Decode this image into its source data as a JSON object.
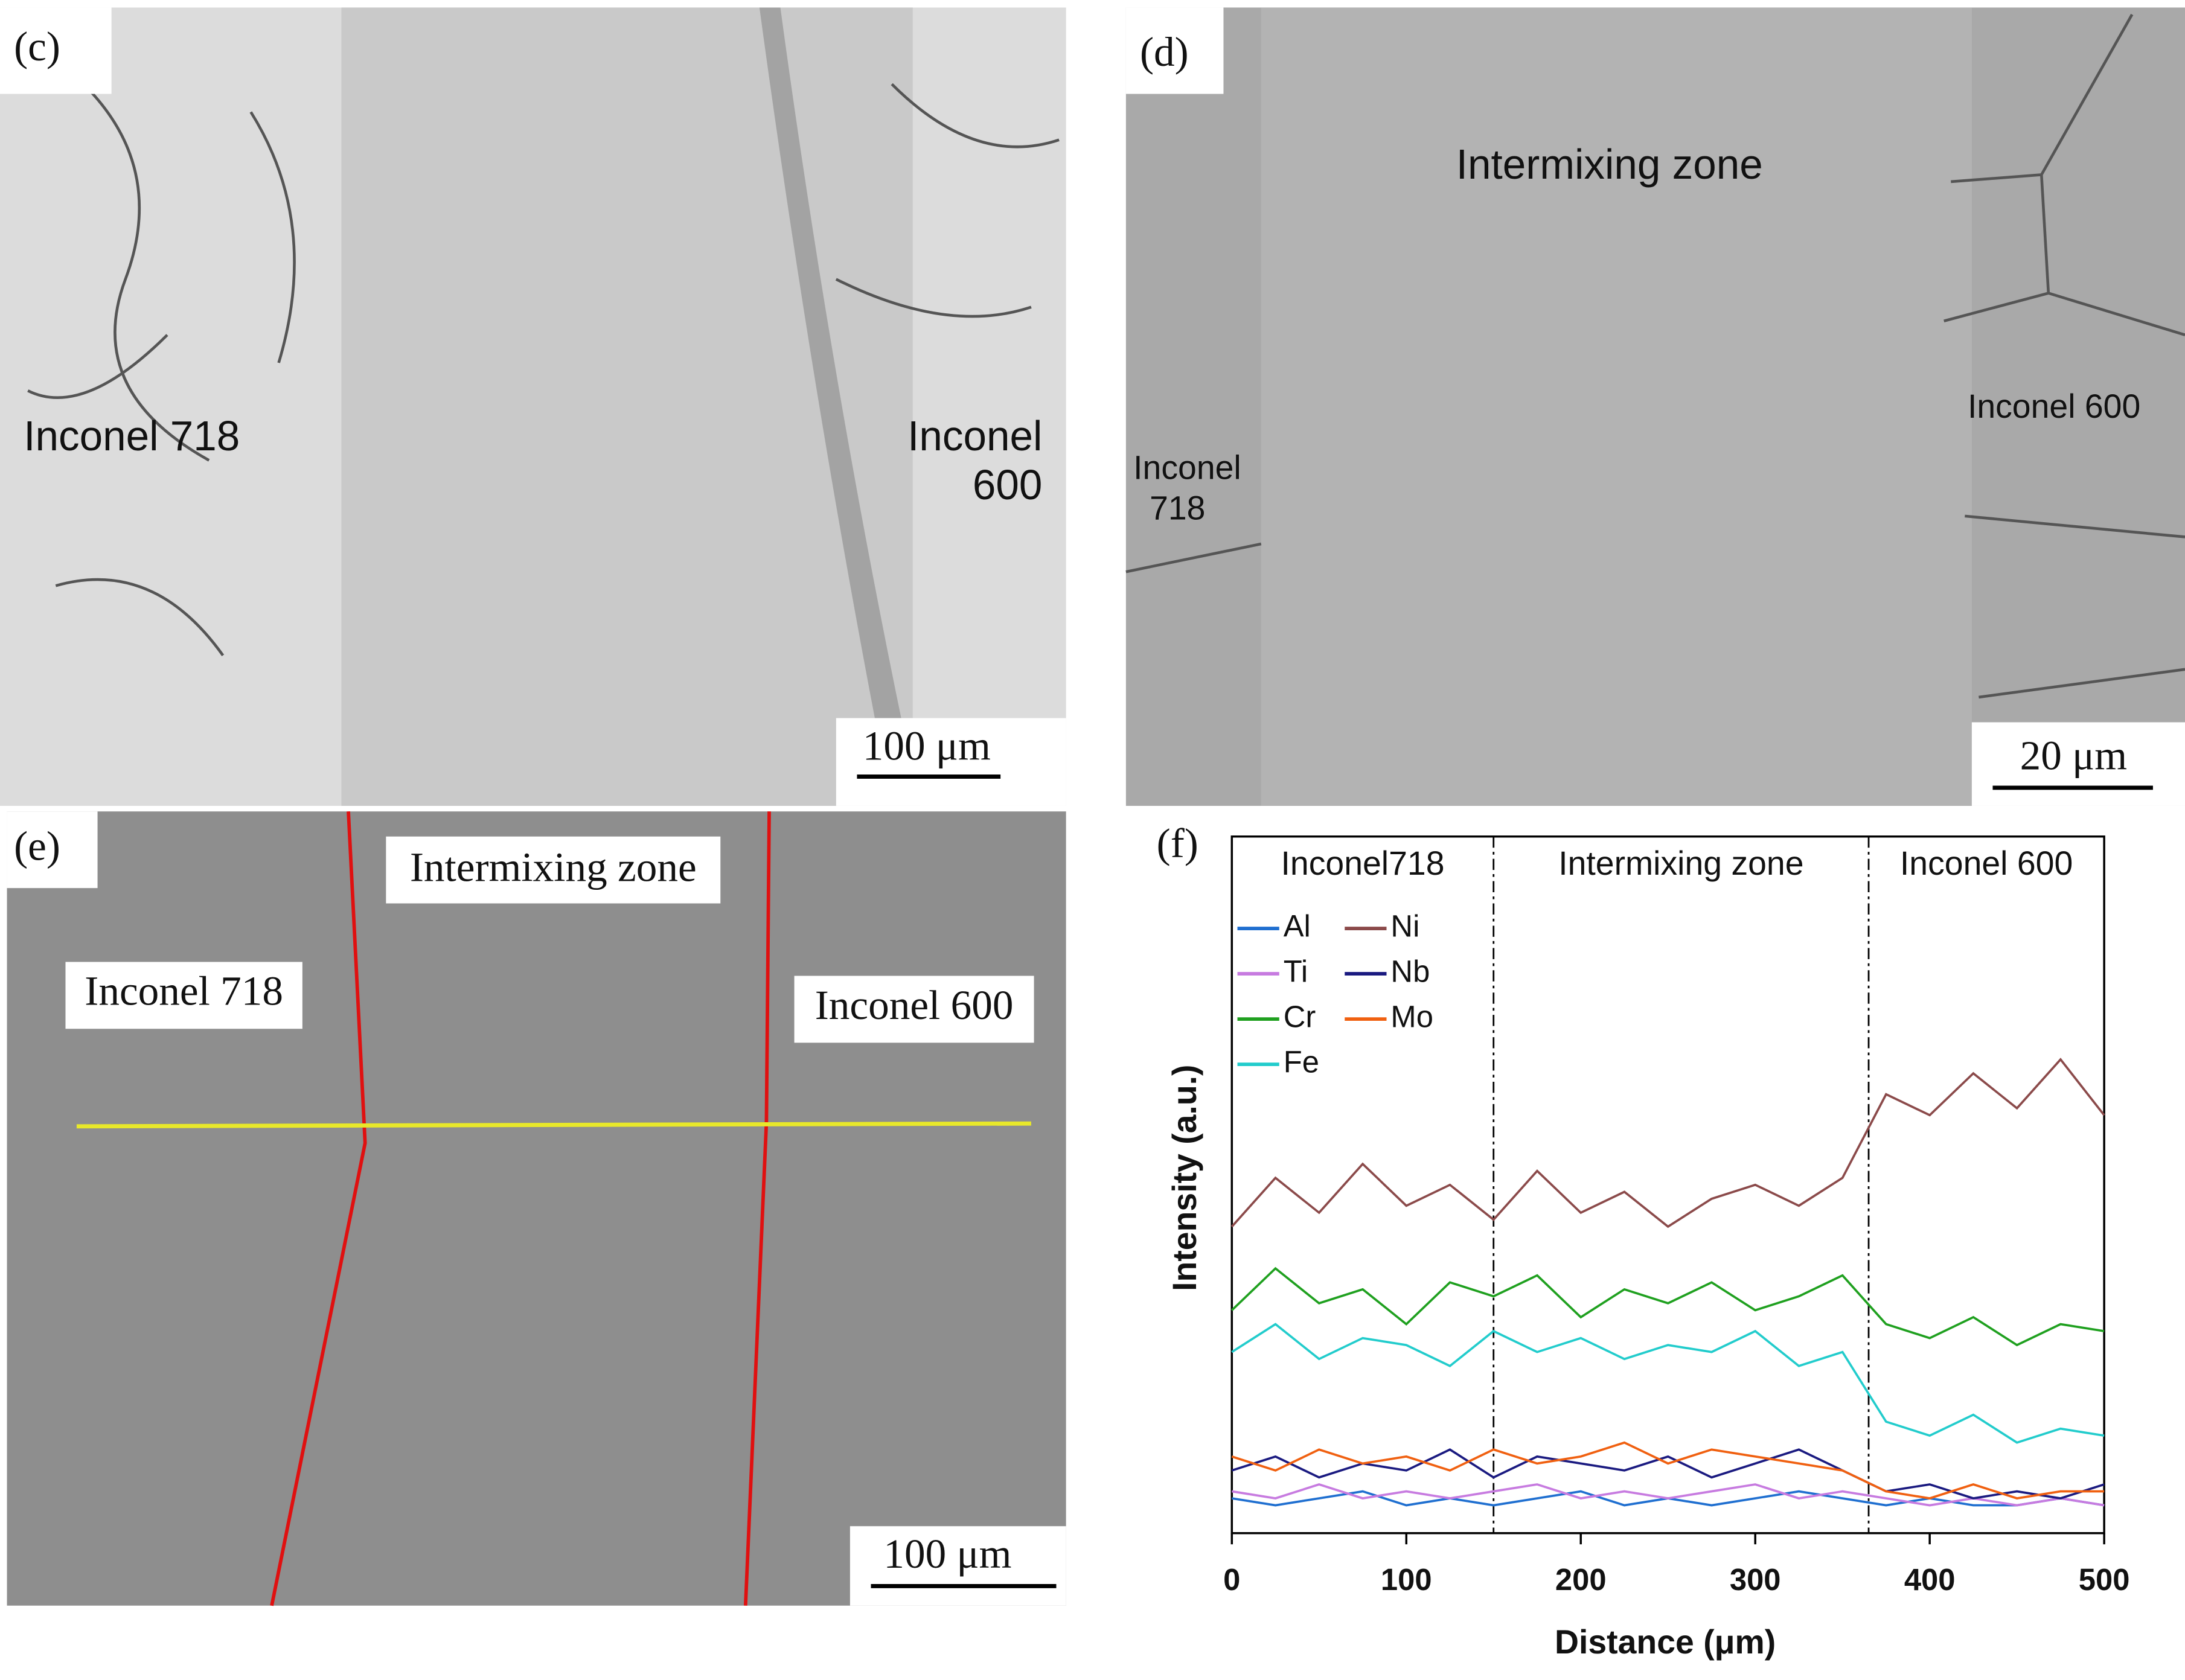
{
  "panels": {
    "c": {
      "label": "(c)",
      "left": "Inconel 718",
      "right_lines": [
        "Inconel",
        "600"
      ],
      "scale_bar": "100 μm"
    },
    "d": {
      "label": "(d)",
      "center": "Intermixing zone",
      "right": "Inconel 600",
      "left_lines": [
        "Inconel",
        "718"
      ],
      "scale_bar": "20 μm"
    },
    "e": {
      "label": "(e)",
      "center": "Intermixing zone",
      "left": "Inconel 718",
      "right": "Inconel 600",
      "scale_bar": "100 μm"
    }
  },
  "chart_data": {
    "type": "line",
    "panel_label": "(f)",
    "x_label": "Distance (μm)",
    "y_label": "Intensity (a.u.)",
    "regions": [
      "Inconel718",
      "Intermixing zone",
      "Inconel 600"
    ],
    "boundaries": [
      150,
      365
    ],
    "x": [
      0,
      25,
      50,
      75,
      100,
      125,
      150,
      175,
      200,
      225,
      250,
      275,
      300,
      325,
      350,
      375,
      400,
      425,
      450,
      475,
      500
    ],
    "xlim": [
      0,
      500
    ],
    "xticks": [
      0,
      100,
      200,
      300,
      400,
      500
    ],
    "ylim": [
      0,
      100
    ],
    "series": [
      {
        "name": "Al",
        "color": "#1f6fd0",
        "values": [
          5,
          4,
          5,
          6,
          4,
          5,
          4,
          5,
          6,
          4,
          5,
          4,
          5,
          6,
          5,
          4,
          5,
          4,
          4,
          5,
          4
        ]
      },
      {
        "name": "Ti",
        "color": "#c77be0",
        "values": [
          6,
          5,
          7,
          5,
          6,
          5,
          6,
          7,
          5,
          6,
          5,
          6,
          7,
          5,
          6,
          5,
          4,
          5,
          4,
          5,
          4
        ]
      },
      {
        "name": "Cr",
        "color": "#1fa01f",
        "values": [
          32,
          38,
          33,
          35,
          30,
          36,
          34,
          37,
          31,
          35,
          33,
          36,
          32,
          34,
          37,
          30,
          28,
          31,
          27,
          30,
          29
        ]
      },
      {
        "name": "Fe",
        "color": "#22cccc",
        "values": [
          26,
          30,
          25,
          28,
          27,
          24,
          29,
          26,
          28,
          25,
          27,
          26,
          29,
          24,
          26,
          16,
          14,
          17,
          13,
          15,
          14
        ]
      },
      {
        "name": "Ni",
        "color": "#8b4a4a",
        "values": [
          44,
          51,
          46,
          53,
          47,
          50,
          45,
          52,
          46,
          49,
          44,
          48,
          50,
          47,
          51,
          63,
          60,
          66,
          61,
          68,
          60
        ]
      },
      {
        "name": "Nb",
        "color": "#1a1a80",
        "values": [
          9,
          11,
          8,
          10,
          9,
          12,
          8,
          11,
          10,
          9,
          11,
          8,
          10,
          12,
          9,
          6,
          7,
          5,
          6,
          5,
          7
        ]
      },
      {
        "name": "Mo",
        "color": "#f06010",
        "values": [
          11,
          9,
          12,
          10,
          11,
          9,
          12,
          10,
          11,
          13,
          10,
          12,
          11,
          10,
          9,
          6,
          5,
          7,
          5,
          6,
          6
        ]
      }
    ]
  }
}
